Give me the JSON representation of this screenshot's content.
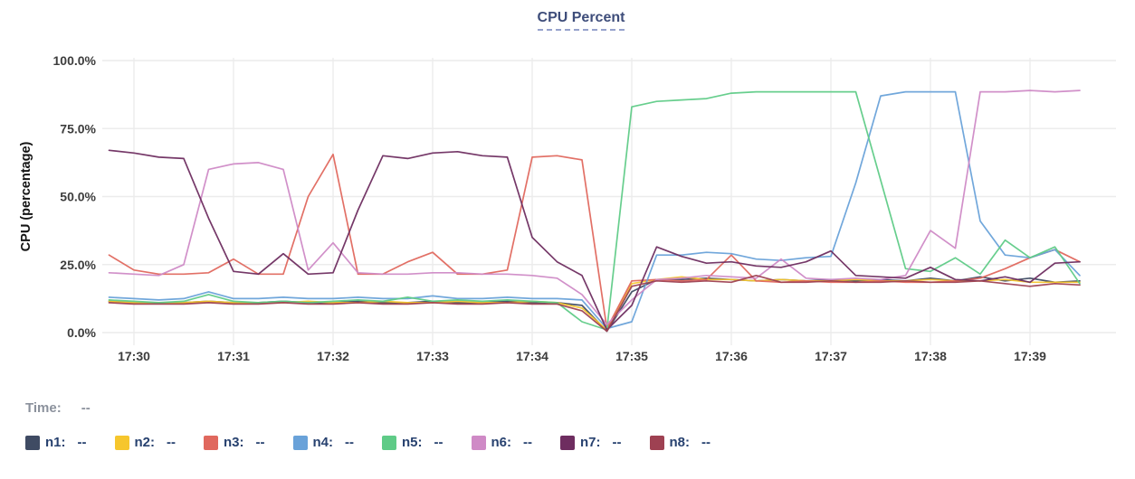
{
  "title": "CPU Percent",
  "time_readout": {
    "label": "Time:",
    "value": "--"
  },
  "legend": [
    {
      "label": "n1:",
      "value": "--",
      "color": "#3f4b63"
    },
    {
      "label": "n2:",
      "value": "--",
      "color": "#f6c62d"
    },
    {
      "label": "n3:",
      "value": "--",
      "color": "#e0685e"
    },
    {
      "label": "n4:",
      "value": "--",
      "color": "#69a2d9"
    },
    {
      "label": "n5:",
      "value": "--",
      "color": "#5fcb87"
    },
    {
      "label": "n6:",
      "value": "--",
      "color": "#cf8ac6"
    },
    {
      "label": "n7:",
      "value": "--",
      "color": "#6e2d60"
    },
    {
      "label": "n8:",
      "value": "--",
      "color": "#9e4152"
    }
  ],
  "chart_data": {
    "type": "line",
    "title": "CPU Percent",
    "ylabel": "CPU (percentage)",
    "xlabel": "",
    "ylim": [
      0,
      100
    ],
    "grid": true,
    "legend_position": "bottom",
    "y_ticks": [
      {
        "value": 0,
        "label": "0.0%"
      },
      {
        "value": 25,
        "label": "25.0%"
      },
      {
        "value": 50,
        "label": "50.0%"
      },
      {
        "value": 75,
        "label": "75.0%"
      },
      {
        "value": 100,
        "label": "100.0%"
      }
    ],
    "x_ticks": [
      "17:30",
      "17:31",
      "17:32",
      "17:33",
      "17:34",
      "17:35",
      "17:36",
      "17:37",
      "17:38",
      "17:39"
    ],
    "x_times": [
      "17:29:45",
      "17:30:00",
      "17:30:15",
      "17:30:30",
      "17:30:45",
      "17:31:00",
      "17:31:15",
      "17:31:30",
      "17:31:45",
      "17:32:00",
      "17:32:15",
      "17:32:30",
      "17:32:45",
      "17:33:00",
      "17:33:15",
      "17:33:30",
      "17:33:45",
      "17:34:00",
      "17:34:15",
      "17:34:30",
      "17:34:45",
      "17:35:00",
      "17:35:15",
      "17:35:30",
      "17:35:45",
      "17:36:00",
      "17:36:15",
      "17:36:30",
      "17:36:45",
      "17:37:00",
      "17:37:15",
      "17:37:30",
      "17:37:45",
      "17:38:00",
      "17:38:15",
      "17:38:30",
      "17:38:45",
      "17:39:00",
      "17:39:15",
      "17:39:30"
    ],
    "series": [
      {
        "name": "n1",
        "color": "#3f4b63",
        "values": [
          11.5,
          11,
          11,
          11,
          11.5,
          11,
          11,
          11.5,
          11,
          11,
          11.5,
          11,
          11,
          11.5,
          11,
          11,
          11.5,
          11,
          11,
          10,
          0.5,
          15,
          19.5,
          19.5,
          20,
          19.5,
          19,
          19.5,
          19,
          19.5,
          19,
          19.5,
          19,
          20,
          19,
          20.5,
          19,
          20,
          18.5,
          19
        ]
      },
      {
        "name": "n2",
        "color": "#f6c62d",
        "values": [
          11.5,
          11,
          11,
          11,
          11.5,
          11,
          11,
          11,
          11.5,
          11,
          11,
          11.5,
          11,
          11,
          11.5,
          11,
          11,
          11.5,
          11,
          9,
          1,
          18,
          19.5,
          20.5,
          19.5,
          19.5,
          19,
          19.5,
          19,
          19,
          19.5,
          19,
          19,
          19.5,
          19,
          19,
          19.5,
          18.5,
          18.5,
          18.5
        ]
      },
      {
        "name": "n3",
        "color": "#e0685e",
        "values": [
          28.5,
          23,
          21.5,
          21.5,
          22,
          27,
          21.5,
          21.5,
          50,
          65.5,
          21.5,
          21.5,
          26,
          29.5,
          21.5,
          21.5,
          23,
          64.5,
          65,
          63.5,
          1.5,
          19,
          19.5,
          19,
          19.5,
          28.5,
          19,
          18.5,
          19,
          18.5,
          18.5,
          19,
          18.5,
          18.5,
          19,
          20,
          23.5,
          27.5,
          30.5,
          26
        ]
      },
      {
        "name": "n4",
        "color": "#69a2d9",
        "values": [
          13,
          12.5,
          12,
          12.5,
          15,
          12.5,
          12.5,
          13,
          12.5,
          12.5,
          13,
          12.5,
          12.5,
          13.5,
          12.5,
          12.5,
          13,
          12.5,
          12.5,
          12,
          1.5,
          4,
          28.5,
          28.5,
          29.5,
          29,
          27,
          26.5,
          27.5,
          28,
          55,
          87,
          88.5,
          88.5,
          88.5,
          41,
          28.5,
          27.5,
          30.5,
          21
        ]
      },
      {
        "name": "n5",
        "color": "#5fcb87",
        "values": [
          12,
          11.5,
          11,
          11.5,
          14,
          11.5,
          11,
          11.5,
          11,
          11.5,
          12,
          11.5,
          13,
          11.5,
          12,
          11.5,
          12,
          11.5,
          11,
          4,
          1,
          83,
          85,
          85.5,
          86,
          88,
          88.5,
          88.5,
          88.5,
          88.5,
          88.5,
          56,
          23.5,
          22.5,
          27.5,
          21.5,
          34,
          27.5,
          31.5,
          18
        ]
      },
      {
        "name": "n6",
        "color": "#cf8ac6",
        "values": [
          22,
          21.5,
          21,
          25,
          60,
          62,
          62.5,
          60,
          23,
          33,
          22,
          21.5,
          21.5,
          22,
          22,
          21.5,
          21.5,
          21,
          20,
          14,
          3,
          12,
          19.5,
          20,
          21,
          20.5,
          20,
          27,
          20,
          19.5,
          20,
          19.5,
          21,
          37.5,
          31,
          88.5,
          88.5,
          89,
          88.5,
          89
        ]
      },
      {
        "name": "n7",
        "color": "#6e2d60",
        "values": [
          67,
          66,
          64.5,
          64,
          42,
          22.5,
          21.5,
          29,
          21.5,
          22,
          45,
          65,
          64,
          66,
          66.5,
          65,
          64.5,
          35,
          26,
          21,
          1,
          10,
          31.5,
          28,
          25.5,
          26,
          24.5,
          24,
          26,
          30,
          21,
          20.5,
          20,
          24,
          19.5,
          19,
          20.5,
          18.5,
          25.5,
          26
        ]
      },
      {
        "name": "n8",
        "color": "#9e4152",
        "values": [
          11,
          10.5,
          10.5,
          10.5,
          11,
          10.5,
          10.5,
          11,
          10.5,
          10.5,
          11,
          10.5,
          10.5,
          11,
          10.5,
          10.5,
          11,
          10.5,
          10.5,
          8,
          0.5,
          17,
          19,
          18.5,
          19,
          18.5,
          21,
          18.5,
          18.5,
          19,
          18.5,
          18.5,
          19,
          18.5,
          18.5,
          19,
          18,
          17,
          18,
          17.5
        ]
      }
    ]
  }
}
